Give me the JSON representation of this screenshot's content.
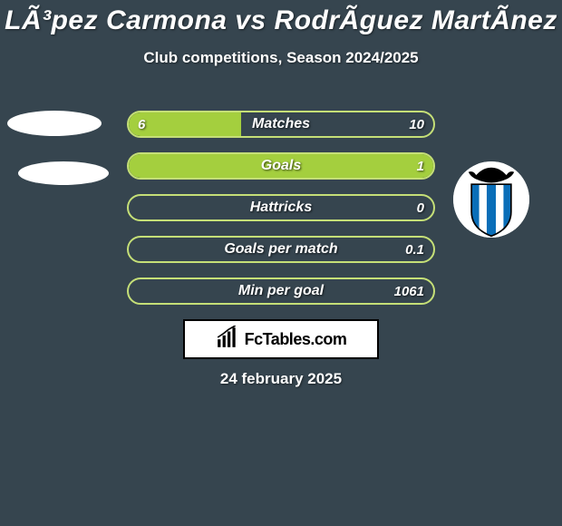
{
  "title": "LÃ³pez Carmona vs RodrÃ­guez MartÃ­nez",
  "subtitle": "Club competitions, Season 2024/2025",
  "date": "24 february 2025",
  "brand": "FcTables.com",
  "colors": {
    "background": "#36454f",
    "bar_border": "#c5df77",
    "bar_fill": "#a4cf3e",
    "text": "#ffffff",
    "logo_border": "#000000",
    "logo_bg": "#ffffff",
    "club_blue": "#0a6eb8",
    "club_black": "#000000"
  },
  "bars": [
    {
      "label": "Matches",
      "left": "6",
      "right": "10",
      "fill_pct": 37
    },
    {
      "label": "Goals",
      "left": "",
      "right": "1",
      "fill_pct": 100
    },
    {
      "label": "Hattricks",
      "left": "",
      "right": "0",
      "fill_pct": 0
    },
    {
      "label": "Goals per match",
      "left": "",
      "right": "0.1",
      "fill_pct": 0
    },
    {
      "label": "Min per goal",
      "left": "",
      "right": "1061",
      "fill_pct": 0
    }
  ]
}
